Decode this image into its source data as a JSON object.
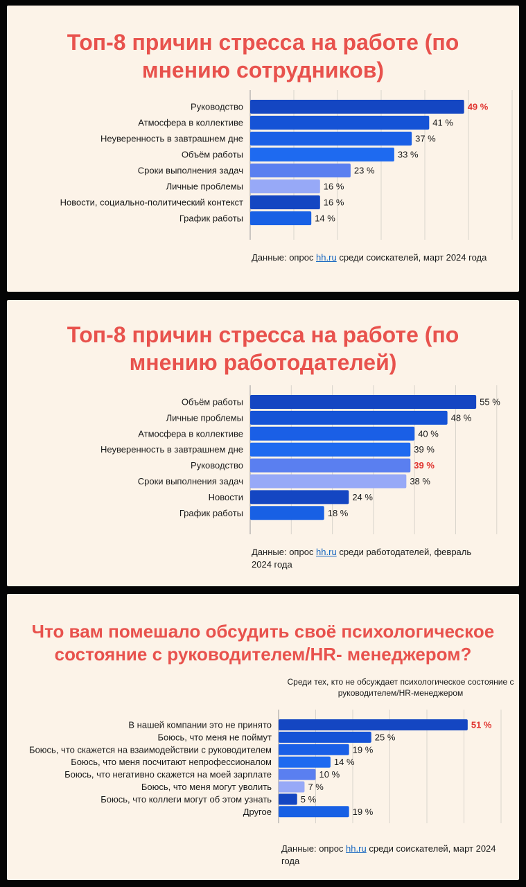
{
  "charts": [
    {
      "title": "Топ-8 причин стресса на работе (по мнению сотрудников)",
      "source_prefix": "Данные: опрос",
      "source_link": "hh.ru",
      "source_suffix": "среди соискателей, март 2024 года",
      "chart_data": {
        "type": "bar",
        "orientation": "horizontal",
        "categories": [
          "Руководство",
          "Атмосфера в коллективе",
          "Неуверенность в завтрашнем дне",
          "Объём работы",
          "Сроки выполнения задач",
          "Личные проблемы",
          "Новости, социально-политический контекст",
          "График работы"
        ],
        "values": [
          49,
          41,
          37,
          33,
          23,
          16,
          16,
          14
        ],
        "value_labels": [
          "49 %",
          "41 %",
          "37 %",
          "33 %",
          "23 %",
          "16 %",
          "16 %",
          "14 %"
        ],
        "highlight_index": 0,
        "bar_colors": [
          "#1446c2",
          "#1553d6",
          "#1a5fe6",
          "#1e6af0",
          "#5a7ff0",
          "#97a9f7",
          "#1446c2",
          "#1860e4"
        ]
      }
    },
    {
      "title": "Топ-8 причин стресса на работе (по мнению работодателей)",
      "source_prefix": "Данные: опрос",
      "source_link": "hh.ru",
      "source_suffix": "среди работодателей, февраль 2024 года",
      "chart_data": {
        "type": "bar",
        "orientation": "horizontal",
        "categories": [
          "Объём работы",
          "Личные проблемы",
          "Атмосфера в коллективе",
          "Неуверенность в завтрашнем дне",
          "Руководство",
          "Сроки выполнения задач",
          "Новости",
          "График работы"
        ],
        "values": [
          55,
          48,
          40,
          39,
          39,
          38,
          24,
          18
        ],
        "value_labels": [
          "55 %",
          "48 %",
          "40 %",
          "39 %",
          "39 %",
          "38 %",
          "24 %",
          "18 %"
        ],
        "highlight_index": 4,
        "bar_colors": [
          "#1446c2",
          "#1553d6",
          "#1a5fe6",
          "#1e6af0",
          "#5a7ff0",
          "#97a9f7",
          "#1446c2",
          "#1860e4"
        ]
      }
    },
    {
      "title": "Что вам помешало обсудить своё психологическое состояние с руководителем/HR- менеджером?",
      "subtitle": "Среди тех, кто не обсуждает психологическое состояние с руководителем/HR-менеджером",
      "source_prefix": "Данные: опрос",
      "source_link": "hh.ru",
      "source_suffix": "среди соискателей, март 2024 года",
      "chart_data": {
        "type": "bar",
        "orientation": "horizontal",
        "categories": [
          "В нашей компании это не принято",
          "Боюсь, что меня не поймут",
          "Боюсь, что скажется на взаимодействии с руководителем",
          "Боюсь, что меня посчитают непрофессионалом",
          "Боюсь, что негативно скажется на моей зарплате",
          "Боюсь, что меня могут уволить",
          "Боюсь, что коллеги могут об этом узнать",
          "Другое"
        ],
        "values": [
          51,
          25,
          19,
          14,
          10,
          7,
          5,
          19
        ],
        "value_labels": [
          "51 %",
          "25 %",
          "19 %",
          "14 %",
          "10 %",
          "7 %",
          "5 %",
          "19 %"
        ],
        "highlight_index": 0,
        "bar_colors": [
          "#1446c2",
          "#1553d6",
          "#1a5fe6",
          "#1e6af0",
          "#5a7ff0",
          "#97a9f7",
          "#1446c2",
          "#1860e4"
        ]
      }
    }
  ]
}
